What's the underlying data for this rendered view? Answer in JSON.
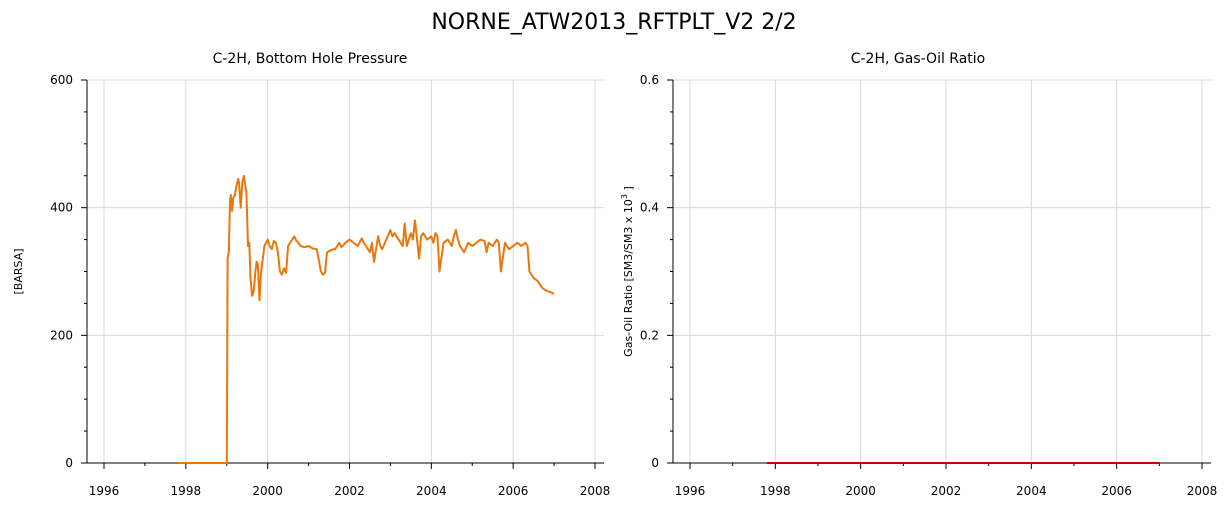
{
  "title": "NORNE_ATW2013_RFTPLT_V2 2/2",
  "chart_data": [
    {
      "type": "line",
      "title": "C-2H, Bottom Hole Pressure",
      "xlabel": "",
      "ylabel": "[BARSA]",
      "ylabel_sup": "",
      "ylabel_tail": "",
      "xlim": [
        1996,
        2008
      ],
      "ylim": [
        0,
        600
      ],
      "xticks": [
        1996,
        1998,
        2000,
        2002,
        2004,
        2006,
        2008
      ],
      "xtick_labels": [
        "1996",
        "1998",
        "2000",
        "2002",
        "2004",
        "2006",
        "2008"
      ],
      "yticks": [
        0,
        200,
        400,
        600
      ],
      "ytick_labels": [
        "0",
        "200",
        "400",
        "600"
      ],
      "grid": true,
      "series": [
        {
          "color": "#e8780c",
          "x": [
            1997.8,
            1999.0,
            1999.02,
            1999.05,
            1999.08,
            1999.1,
            1999.13,
            1999.16,
            1999.2,
            1999.24,
            1999.28,
            1999.3,
            1999.34,
            1999.38,
            1999.42,
            1999.45,
            1999.48,
            1999.52,
            1999.55,
            1999.58,
            1999.62,
            1999.66,
            1999.7,
            1999.73,
            1999.76,
            1999.8,
            1999.84,
            1999.88,
            1999.92,
            1999.96,
            2000.0,
            2000.05,
            2000.1,
            2000.15,
            2000.2,
            2000.25,
            2000.3,
            2000.35,
            2000.4,
            2000.45,
            2000.5,
            2000.6,
            2000.65,
            2000.7,
            2000.75,
            2000.8,
            2000.9,
            2001.0,
            2001.1,
            2001.2,
            2001.3,
            2001.35,
            2001.4,
            2001.45,
            2001.6,
            2001.65,
            2001.7,
            2001.75,
            2001.8,
            2001.9,
            2002.0,
            2002.1,
            2002.2,
            2002.3,
            2002.35,
            2002.4,
            2002.5,
            2002.55,
            2002.6,
            2002.7,
            2002.75,
            2002.8,
            2002.9,
            2003.0,
            2003.05,
            2003.1,
            2003.2,
            2003.3,
            2003.35,
            2003.4,
            2003.5,
            2003.55,
            2003.6,
            2003.7,
            2003.75,
            2003.8,
            2003.9,
            2004.0,
            2004.05,
            2004.1,
            2004.15,
            2004.2,
            2004.3,
            2004.4,
            2004.5,
            2004.55,
            2004.6,
            2004.65,
            2004.7,
            2004.8,
            2004.9,
            2005.0,
            2005.1,
            2005.2,
            2005.3,
            2005.35,
            2005.4,
            2005.5,
            2005.6,
            2005.65,
            2005.7,
            2005.8,
            2005.9,
            2006.0,
            2006.1,
            2006.2,
            2006.3,
            2006.35,
            2006.4,
            2006.5,
            2006.6,
            2006.7,
            2006.8,
            2006.9,
            2007.0
          ],
          "y": [
            0,
            0,
            320,
            330,
            410,
            420,
            395,
            415,
            420,
            435,
            445,
            440,
            400,
            440,
            450,
            435,
            425,
            340,
            345,
            290,
            262,
            270,
            300,
            315,
            312,
            255,
            300,
            320,
            340,
            345,
            350,
            340,
            335,
            348,
            345,
            330,
            300,
            295,
            305,
            298,
            340,
            350,
            355,
            348,
            345,
            340,
            338,
            340,
            336,
            335,
            300,
            295,
            298,
            330,
            335,
            335,
            340,
            345,
            338,
            345,
            350,
            345,
            340,
            352,
            345,
            340,
            330,
            345,
            315,
            355,
            340,
            335,
            350,
            365,
            355,
            360,
            350,
            340,
            375,
            340,
            360,
            350,
            380,
            320,
            355,
            360,
            350,
            355,
            345,
            360,
            355,
            300,
            345,
            350,
            340,
            355,
            365,
            350,
            340,
            330,
            345,
            340,
            345,
            350,
            348,
            330,
            345,
            340,
            350,
            345,
            300,
            345,
            335,
            340,
            345,
            340,
            345,
            340,
            300,
            290,
            285,
            275,
            270,
            268,
            265
          ]
        }
      ]
    },
    {
      "type": "line",
      "title": "C-2H, Gas-Oil Ratio",
      "xlabel": "",
      "ylabel": "Gas-Oil Ratio [SM3/SM3 x 10",
      "ylabel_sup": "3",
      "ylabel_tail": " ]",
      "xlim": [
        1996,
        2008
      ],
      "ylim": [
        0,
        0.6
      ],
      "xticks": [
        1996,
        1998,
        2000,
        2002,
        2004,
        2006,
        2008
      ],
      "xtick_labels": [
        "1996",
        "1998",
        "2000",
        "2002",
        "2004",
        "2006",
        "2008"
      ],
      "yticks": [
        0,
        0.2,
        0.4,
        0.6
      ],
      "ytick_labels": [
        "0",
        "0.2",
        "0.4",
        "0.6"
      ],
      "grid": true,
      "series": [
        {
          "color": "#cc0000",
          "x": [
            1997.8,
            2007.0
          ],
          "y": [
            0,
            0
          ]
        }
      ]
    }
  ]
}
